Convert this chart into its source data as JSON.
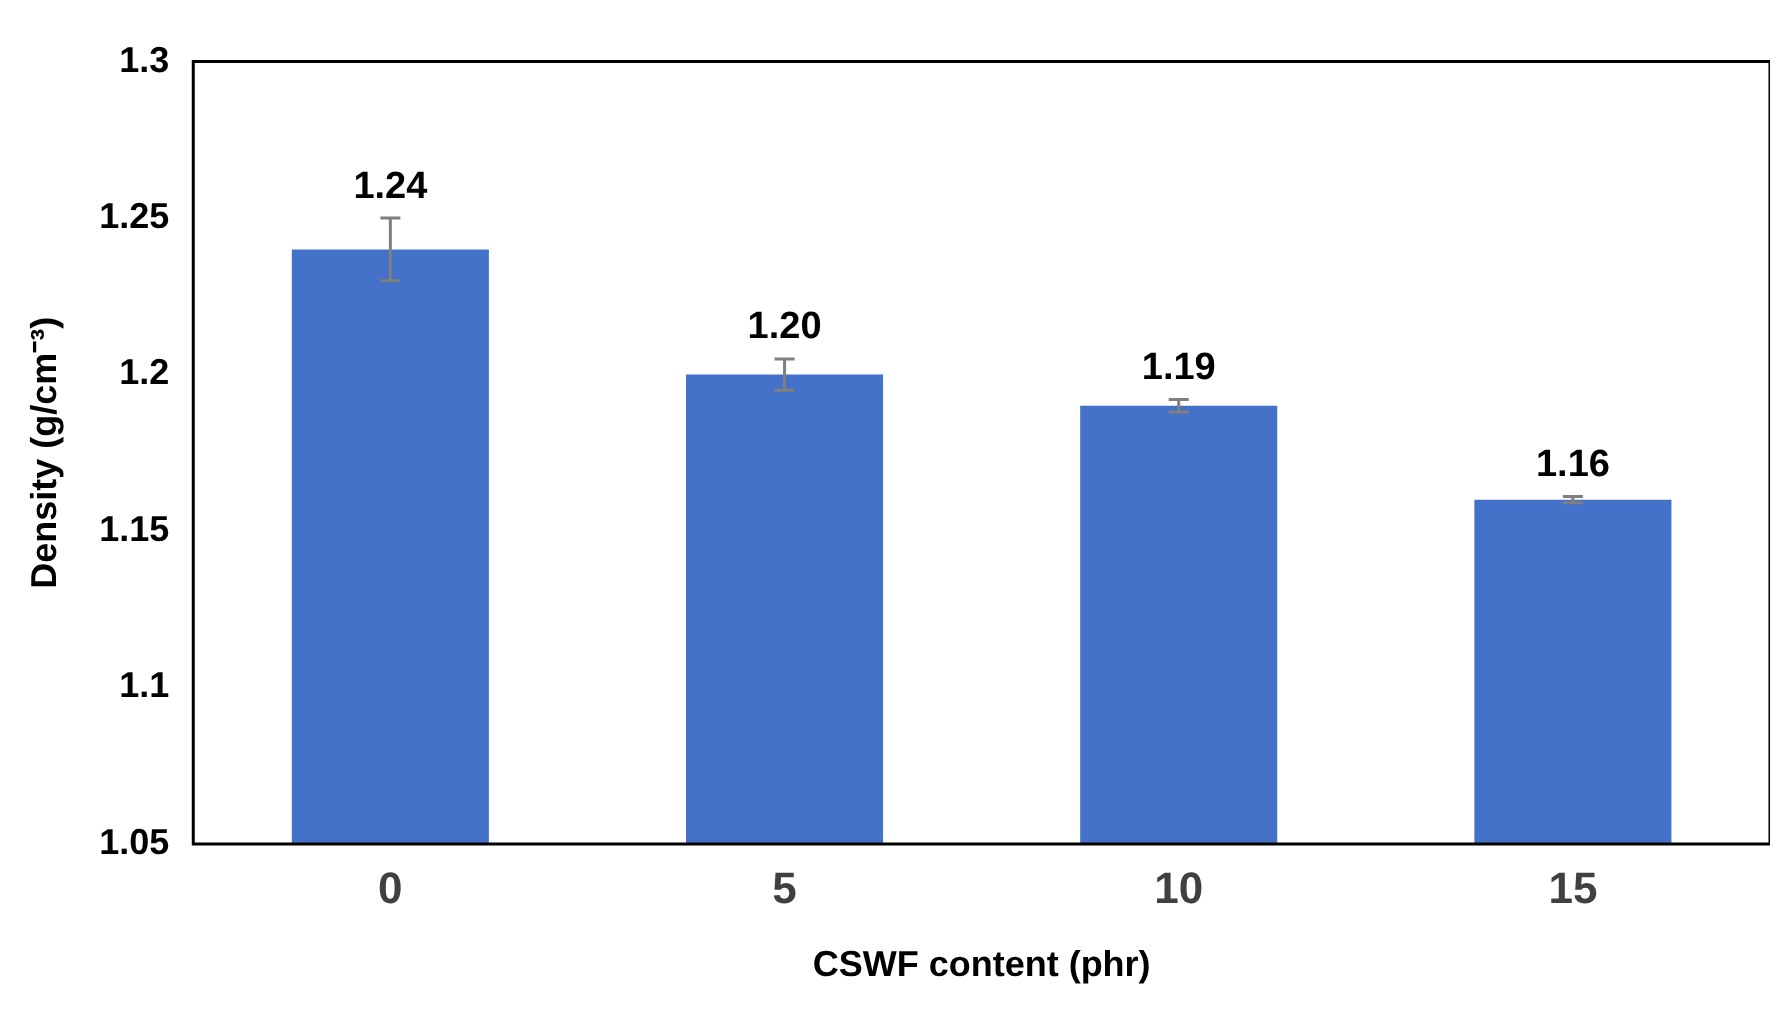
{
  "chart_data": {
    "type": "bar",
    "xlabel": "CSWF content (phr)",
    "ylabel": "Density (g/cm⁻³)",
    "categories": [
      "0",
      "5",
      "10",
      "15"
    ],
    "values": [
      1.24,
      1.2,
      1.19,
      1.16
    ],
    "value_labels": [
      "1.24",
      "1.20",
      "1.19",
      "1.16"
    ],
    "errors": [
      0.01,
      0.005,
      0.002,
      0.001
    ],
    "color": "#4472c8",
    "ylim": [
      1.05,
      1.3
    ],
    "yticks": [
      1.05,
      1.1,
      1.15,
      1.2,
      1.25,
      1.3
    ],
    "grid": false,
    "legend": false
  }
}
